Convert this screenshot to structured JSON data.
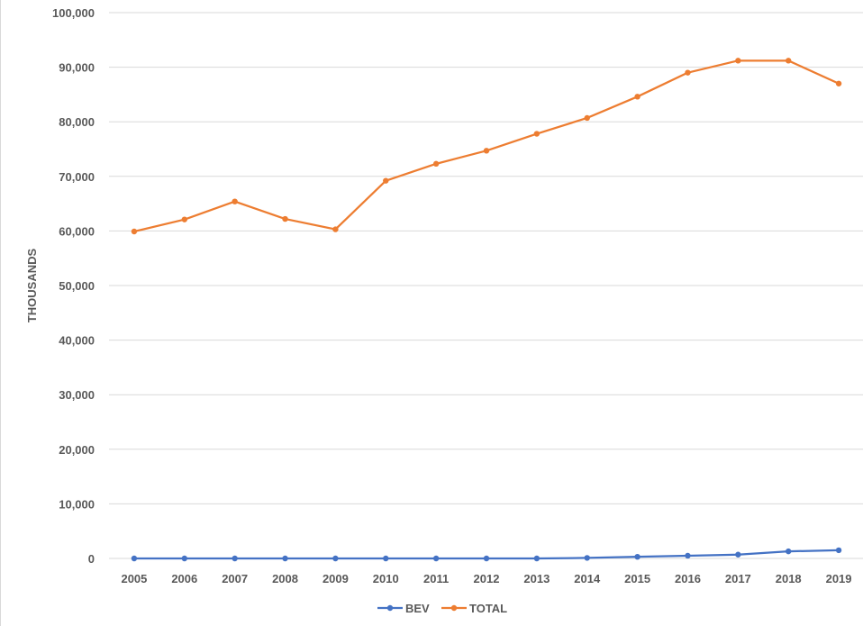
{
  "chart_data": {
    "type": "line",
    "title": "",
    "xlabel": "",
    "ylabel": "THOUSANDS",
    "ylim": [
      0,
      100000
    ],
    "yticks": [
      0,
      10000,
      20000,
      30000,
      40000,
      50000,
      60000,
      70000,
      80000,
      90000,
      100000
    ],
    "ytick_labels": [
      "0",
      "10,000",
      "20,000",
      "30,000",
      "40,000",
      "50,000",
      "60,000",
      "70,000",
      "80,000",
      "90,000",
      "100,000"
    ],
    "grid": true,
    "legend_position": "bottom",
    "categories": [
      "2005",
      "2006",
      "2007",
      "2008",
      "2009",
      "2010",
      "2011",
      "2012",
      "2013",
      "2014",
      "2015",
      "2016",
      "2017",
      "2018",
      "2019"
    ],
    "series": [
      {
        "name": "BEV",
        "color": "#4472c4",
        "values": [
          0,
          0,
          0,
          0,
          0,
          0,
          0,
          0,
          0,
          100,
          300,
          500,
          700,
          1300,
          1500
        ]
      },
      {
        "name": "TOTAL",
        "color": "#ed7d31",
        "values": [
          59900,
          62100,
          65400,
          62200,
          60300,
          69200,
          72300,
          74700,
          77800,
          80700,
          84600,
          89000,
          91200,
          91200,
          87000
        ]
      }
    ]
  }
}
